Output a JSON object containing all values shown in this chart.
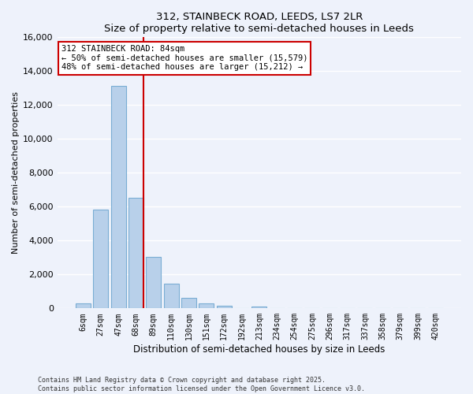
{
  "title": "312, STAINBECK ROAD, LEEDS, LS7 2LR",
  "subtitle": "Size of property relative to semi-detached houses in Leeds",
  "xlabel": "Distribution of semi-detached houses by size in Leeds",
  "ylabel": "Number of semi-detached properties",
  "bar_labels": [
    "6sqm",
    "27sqm",
    "47sqm",
    "68sqm",
    "89sqm",
    "110sqm",
    "130sqm",
    "151sqm",
    "172sqm",
    "192sqm",
    "213sqm",
    "234sqm",
    "254sqm",
    "275sqm",
    "296sqm",
    "317sqm",
    "337sqm",
    "358sqm",
    "379sqm",
    "399sqm",
    "420sqm"
  ],
  "bar_values": [
    300,
    5800,
    13100,
    6500,
    3050,
    1450,
    620,
    280,
    150,
    20,
    90,
    0,
    0,
    0,
    0,
    0,
    0,
    0,
    0,
    0,
    0
  ],
  "bar_color": "#b8d0ea",
  "bar_edge_color": "#7aadd4",
  "vline_x_index": 3,
  "vline_color": "#cc0000",
  "ylim": [
    0,
    16000
  ],
  "yticks": [
    0,
    2000,
    4000,
    6000,
    8000,
    10000,
    12000,
    14000,
    16000
  ],
  "annotation_title": "312 STAINBECK ROAD: 84sqm",
  "annotation_line1": "← 50% of semi-detached houses are smaller (15,579)",
  "annotation_line2": "48% of semi-detached houses are larger (15,212) →",
  "annotation_box_facecolor": "white",
  "annotation_box_edgecolor": "#cc0000",
  "footnote1": "Contains HM Land Registry data © Crown copyright and database right 2025.",
  "footnote2": "Contains public sector information licensed under the Open Government Licence v3.0.",
  "background_color": "#eef2fb",
  "grid_color": "white"
}
